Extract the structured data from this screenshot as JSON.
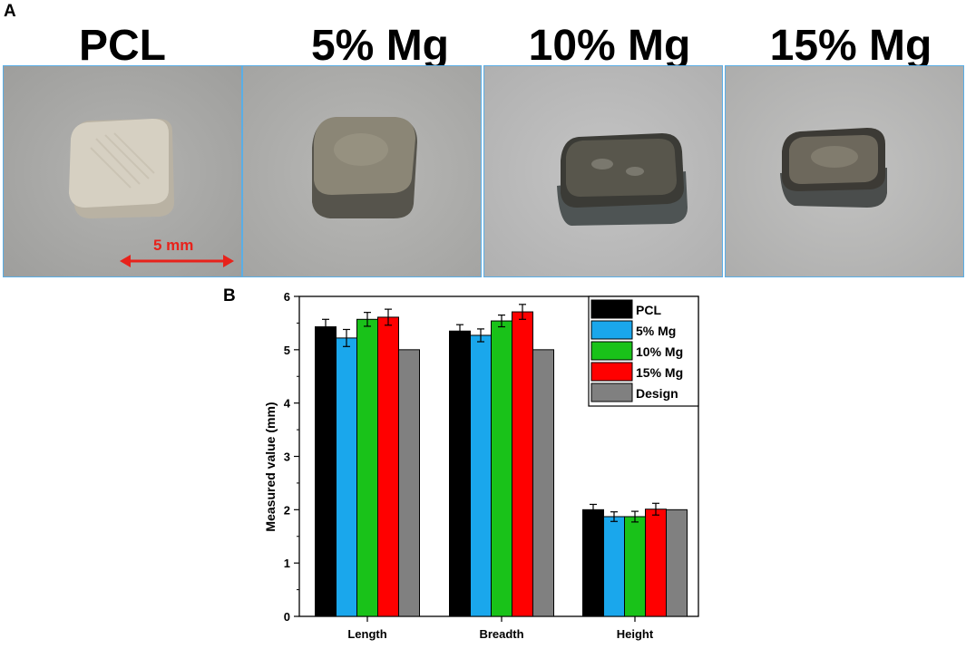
{
  "panel_a_label": "A",
  "panel_b_label": "B",
  "photos": [
    {
      "title": "PCL"
    },
    {
      "title": "5% Mg"
    },
    {
      "title": "10% Mg"
    },
    {
      "title": "15% Mg"
    }
  ],
  "scale_bar_label": "5 mm",
  "chart_data": {
    "type": "bar",
    "title": "",
    "xlabel": "",
    "ylabel": "Measured value (mm)",
    "ylim": [
      0,
      6
    ],
    "yticks": [
      "0",
      "1",
      "2",
      "3",
      "4",
      "5",
      "6"
    ],
    "categories": [
      "Length",
      "Breadth",
      "Height"
    ],
    "series": [
      {
        "name": "PCL",
        "color": "#000000",
        "values": [
          5.43,
          5.35,
          2.0
        ],
        "errors": [
          0.14,
          0.12,
          0.1
        ]
      },
      {
        "name": "5% Mg",
        "color": "#1aa7ec",
        "values": [
          5.22,
          5.27,
          1.87
        ],
        "errors": [
          0.16,
          0.12,
          0.09
        ]
      },
      {
        "name": "10% Mg",
        "color": "#19c219",
        "values": [
          5.57,
          5.54,
          1.87
        ],
        "errors": [
          0.13,
          0.11,
          0.1
        ]
      },
      {
        "name": "15% Mg",
        "color": "#ff0000",
        "values": [
          5.61,
          5.71,
          2.01
        ],
        "errors": [
          0.15,
          0.14,
          0.11
        ]
      },
      {
        "name": "Design",
        "color": "#808080",
        "values": [
          5.0,
          5.0,
          2.0
        ],
        "errors": [
          0,
          0,
          0
        ]
      }
    ],
    "legend_position": "top-right",
    "grid": false
  }
}
